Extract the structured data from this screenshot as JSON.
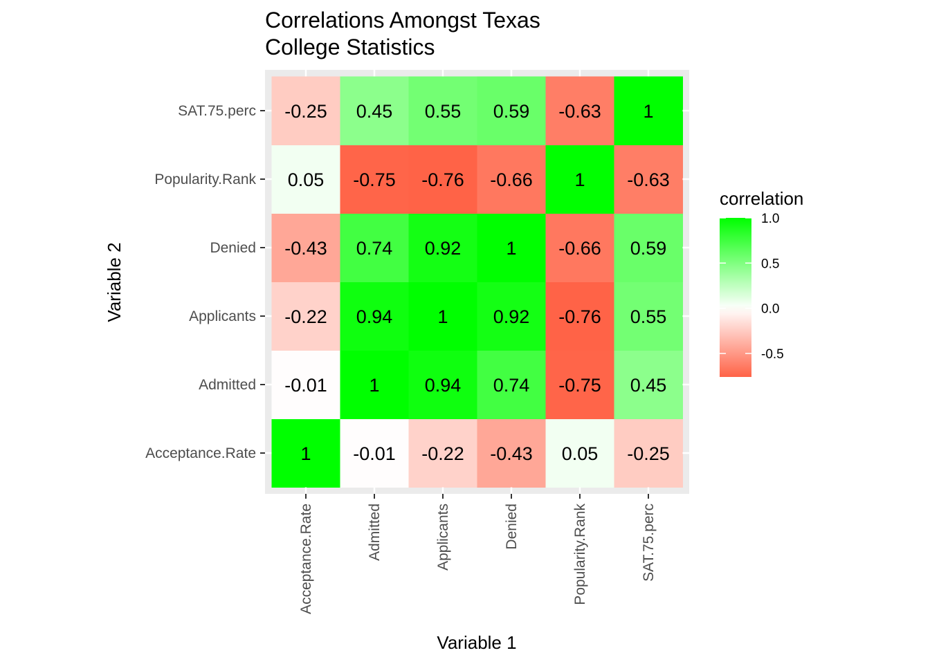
{
  "chart_data": {
    "type": "heatmap",
    "title_lines": [
      "Correlations Amongst Texas",
      "College Statistics"
    ],
    "xlabel": "Variable 1",
    "ylabel": "Variable 2",
    "x_categories": [
      "Acceptance.Rate",
      "Admitted",
      "Applicants",
      "Denied",
      "Popularity.Rank",
      "SAT.75.perc"
    ],
    "y_categories": [
      "Acceptance.Rate",
      "Admitted",
      "Applicants",
      "Denied",
      "Popularity.Rank",
      "SAT.75.perc"
    ],
    "matrix": [
      [
        1,
        -0.01,
        -0.22,
        -0.43,
        0.05,
        -0.25
      ],
      [
        -0.01,
        1,
        0.94,
        0.74,
        -0.75,
        0.45
      ],
      [
        -0.22,
        0.94,
        1,
        0.92,
        -0.76,
        0.55
      ],
      [
        -0.43,
        0.74,
        0.92,
        1,
        -0.66,
        0.59
      ],
      [
        0.05,
        -0.75,
        -0.76,
        -0.66,
        1,
        -0.63
      ],
      [
        -0.25,
        0.45,
        0.55,
        0.59,
        -0.63,
        1
      ]
    ],
    "matrix_labels": [
      [
        "1",
        "-0.01",
        "-0.22",
        "-0.43",
        "0.05",
        "-0.25"
      ],
      [
        "-0.01",
        "1",
        "0.94",
        "0.74",
        "-0.75",
        "0.45"
      ],
      [
        "-0.22",
        "0.94",
        "1",
        "0.92",
        "-0.76",
        "0.55"
      ],
      [
        "-0.43",
        "0.74",
        "0.92",
        "1",
        "-0.66",
        "0.59"
      ],
      [
        "0.05",
        "-0.75",
        "-0.76",
        "-0.66",
        "1",
        "-0.63"
      ],
      [
        "-0.25",
        "0.45",
        "0.55",
        "0.59",
        "-0.63",
        "1"
      ]
    ],
    "legend": {
      "title": "correlation",
      "position": "right",
      "range": [
        -0.76,
        1
      ],
      "ticks": [
        1.0,
        0.5,
        0.0,
        -0.5
      ],
      "tick_labels": [
        "1.0",
        "0.5",
        "0.0",
        "-0.5"
      ]
    },
    "colors": {
      "high": "#00ff00",
      "mid": "#ffffff",
      "low": "#ff6347",
      "panel_background": "#ebebeb"
    }
  }
}
